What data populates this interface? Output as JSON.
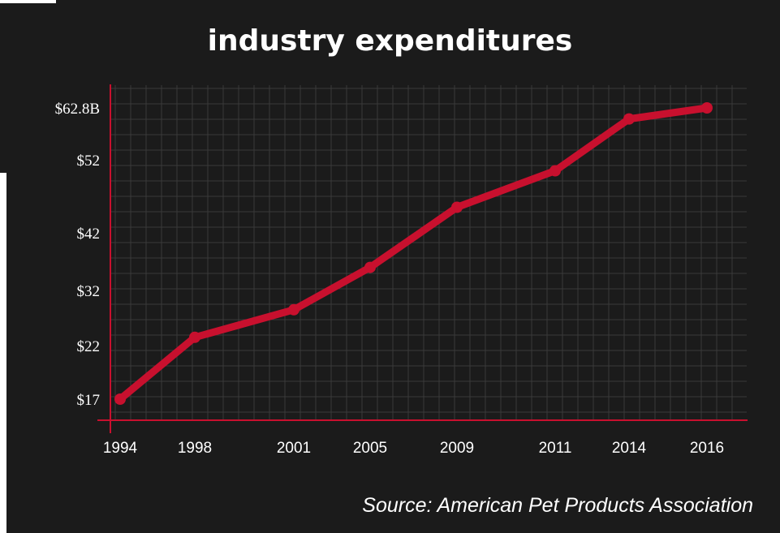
{
  "chart_data": {
    "type": "line",
    "title": "industry expenditures",
    "source": "Source: American Pet Products Association",
    "categories": [
      "1994",
      "1998",
      "2001",
      "2005",
      "2009",
      "2011",
      "2014",
      "2016"
    ],
    "series": [
      {
        "values": [
          17,
          23.5,
          28.5,
          36,
          45.5,
          50.5,
          60.5,
          62.8
        ]
      }
    ],
    "y_ticks": [
      {
        "label": "$62.8B",
        "value": 62.8
      },
      {
        "label": "$52",
        "value": 52
      },
      {
        "label": "$42",
        "value": 42
      },
      {
        "label": "$32",
        "value": 32
      },
      {
        "label": "$22",
        "value": 22
      },
      {
        "label": "$17",
        "value": 17
      }
    ],
    "ylim": [
      15,
      64
    ],
    "grid": true,
    "colors": {
      "line": "#c8102e",
      "background": "#1b1b1b",
      "axis": "#c8102e",
      "grid": "#3a3a3a"
    }
  }
}
